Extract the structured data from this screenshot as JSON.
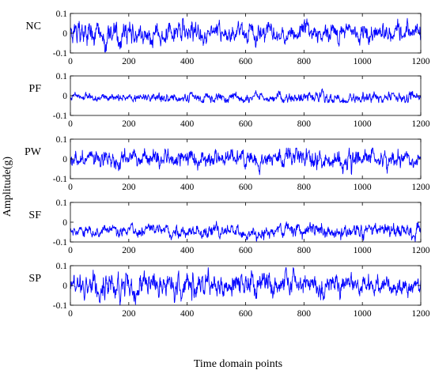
{
  "figure": {
    "ylabel": "Amplitude(g)",
    "xlabel": "Time domain points"
  },
  "chart_data": [
    {
      "type": "line",
      "condition_label": "NC",
      "xlim": [
        0,
        1200
      ],
      "ylim": [
        -0.1,
        0.1
      ],
      "xticks": [
        0,
        200,
        400,
        600,
        800,
        1000,
        1200
      ],
      "yticks": [
        -0.1,
        0,
        0.1
      ],
      "ytick_labels": [
        "-0.1",
        "0",
        "0.1"
      ],
      "line_color": "#0000ff",
      "signal": {
        "points": 1201,
        "mean": 0.0,
        "std": 0.035,
        "segments": [
          [
            0,
            0.035
          ],
          [
            300,
            0.03
          ],
          [
            600,
            0.025
          ],
          [
            1200,
            0.025
          ]
        ],
        "min": -0.095,
        "max": 0.075
      }
    },
    {
      "type": "line",
      "condition_label": "PF",
      "xlim": [
        0,
        1200
      ],
      "ylim": [
        -0.1,
        0.1
      ],
      "xticks": [
        0,
        200,
        400,
        600,
        800,
        1000,
        1200
      ],
      "yticks": [
        -0.1,
        0,
        0.1
      ],
      "ytick_labels": [
        "-0.1",
        "0",
        "0.1"
      ],
      "line_color": "#0000ff",
      "signal": {
        "points": 1201,
        "mean": -0.01,
        "std": 0.012,
        "segments": [
          [
            0,
            0.008
          ],
          [
            400,
            0.012
          ],
          [
            1000,
            0.015
          ],
          [
            1200,
            0.015
          ]
        ],
        "min": -0.035,
        "max": 0.04
      }
    },
    {
      "type": "line",
      "condition_label": "PW",
      "xlim": [
        0,
        1200
      ],
      "ylim": [
        -0.1,
        0.1
      ],
      "xticks": [
        0,
        200,
        400,
        600,
        800,
        1000,
        1200
      ],
      "yticks": [
        -0.1,
        0,
        0.1
      ],
      "ytick_labels": [
        "-0.1",
        "0",
        "0.1"
      ],
      "line_color": "#0000ff",
      "signal": {
        "points": 1201,
        "mean": 0.0,
        "std": 0.022,
        "segments": [
          [
            0,
            0.02
          ],
          [
            400,
            0.022
          ],
          [
            1000,
            0.025
          ],
          [
            1200,
            0.02
          ]
        ],
        "min": -0.085,
        "max": 0.055
      }
    },
    {
      "type": "line",
      "condition_label": "SF",
      "xlim": [
        0,
        1200
      ],
      "ylim": [
        -0.1,
        0.1
      ],
      "xticks": [
        0,
        200,
        400,
        600,
        800,
        1000,
        1200
      ],
      "yticks": [
        -0.1,
        0,
        0.1
      ],
      "ytick_labels": [
        "-0.1",
        "0",
        "0.1"
      ],
      "line_color": "#0000ff",
      "signal": {
        "points": 1201,
        "mean": -0.045,
        "std": 0.018,
        "segments": [
          [
            0,
            0.015
          ],
          [
            1200,
            0.02
          ]
        ],
        "min": -0.1,
        "max": 0.005
      }
    },
    {
      "type": "line",
      "condition_label": "SP",
      "xlim": [
        0,
        1200
      ],
      "ylim": [
        -0.1,
        0.1
      ],
      "xticks": [
        0,
        200,
        400,
        600,
        800,
        1000,
        1200
      ],
      "yticks": [
        -0.1,
        0,
        0.1
      ],
      "ytick_labels": [
        "-0.1",
        "0",
        "0.1"
      ],
      "line_color": "#0000ff",
      "signal": {
        "points": 1201,
        "mean": 0.0,
        "std": 0.03,
        "segments": [
          [
            0,
            0.03
          ],
          [
            500,
            0.035
          ],
          [
            700,
            0.03
          ],
          [
            1200,
            0.025
          ]
        ],
        "min": -0.1,
        "max": 0.09
      }
    }
  ]
}
